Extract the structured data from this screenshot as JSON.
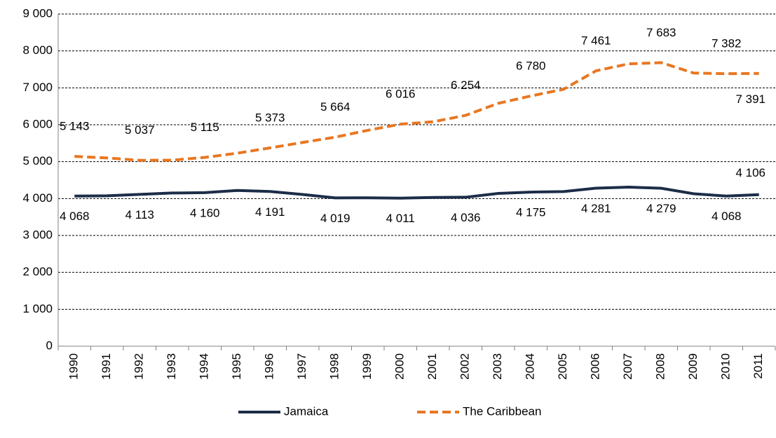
{
  "chart_data": {
    "type": "line",
    "categories": [
      "1990",
      "1991",
      "1992",
      "1993",
      "1994",
      "1995",
      "1996",
      "1997",
      "1998",
      "1999",
      "2000",
      "2001",
      "2002",
      "2003",
      "2004",
      "2005",
      "2006",
      "2007",
      "2008",
      "2009",
      "2010",
      "2011"
    ],
    "series": [
      {
        "name": "Jamaica",
        "color": "#1c2d48",
        "dashed": false,
        "values": [
          4068,
          4075,
          4113,
          4150,
          4160,
          4220,
          4191,
          4110,
          4019,
          4020,
          4011,
          4030,
          4036,
          4140,
          4175,
          4190,
          4281,
          4310,
          4279,
          4130,
          4068,
          4106
        ],
        "value_labels": [
          "4 068",
          null,
          "4 113",
          null,
          "4 160",
          null,
          "4 191",
          null,
          "4 019",
          null,
          "4 011",
          null,
          "4 036",
          null,
          "4 175",
          null,
          "4 281",
          null,
          "4 279",
          null,
          "4 068",
          "4 106"
        ]
      },
      {
        "name": "The Caribbean",
        "color": "#e87722",
        "dashed": true,
        "values": [
          5143,
          5100,
          5037,
          5040,
          5115,
          5230,
          5373,
          5520,
          5664,
          5850,
          6016,
          6080,
          6254,
          6580,
          6780,
          6960,
          7461,
          7650,
          7683,
          7400,
          7382,
          7391
        ],
        "value_labels": [
          "5 143",
          null,
          "5 037",
          null,
          "5 115",
          null,
          "5 373",
          null,
          "5 664",
          null,
          "6 016",
          null,
          "6 254",
          null,
          "6 780",
          null,
          "7 461",
          null,
          "7 683",
          null,
          "7 382",
          "7 391"
        ]
      }
    ],
    "ylim": [
      0,
      9000
    ],
    "yticks": [
      0,
      {
        "value": 1000,
        "label": "1 000"
      },
      {
        "value": 2000,
        "label": "2 000"
      },
      {
        "value": 3000,
        "label": "3 000"
      },
      {
        "value": 4000,
        "label": "4 000"
      },
      {
        "value": 5000,
        "label": "5 000"
      },
      {
        "value": 6000,
        "label": "6 000"
      },
      {
        "value": 7000,
        "label": "7 000"
      },
      {
        "value": 8000,
        "label": "8 000"
      },
      {
        "value": 9000,
        "label": "9 000"
      }
    ],
    "grid": true,
    "legend": "bottom"
  }
}
